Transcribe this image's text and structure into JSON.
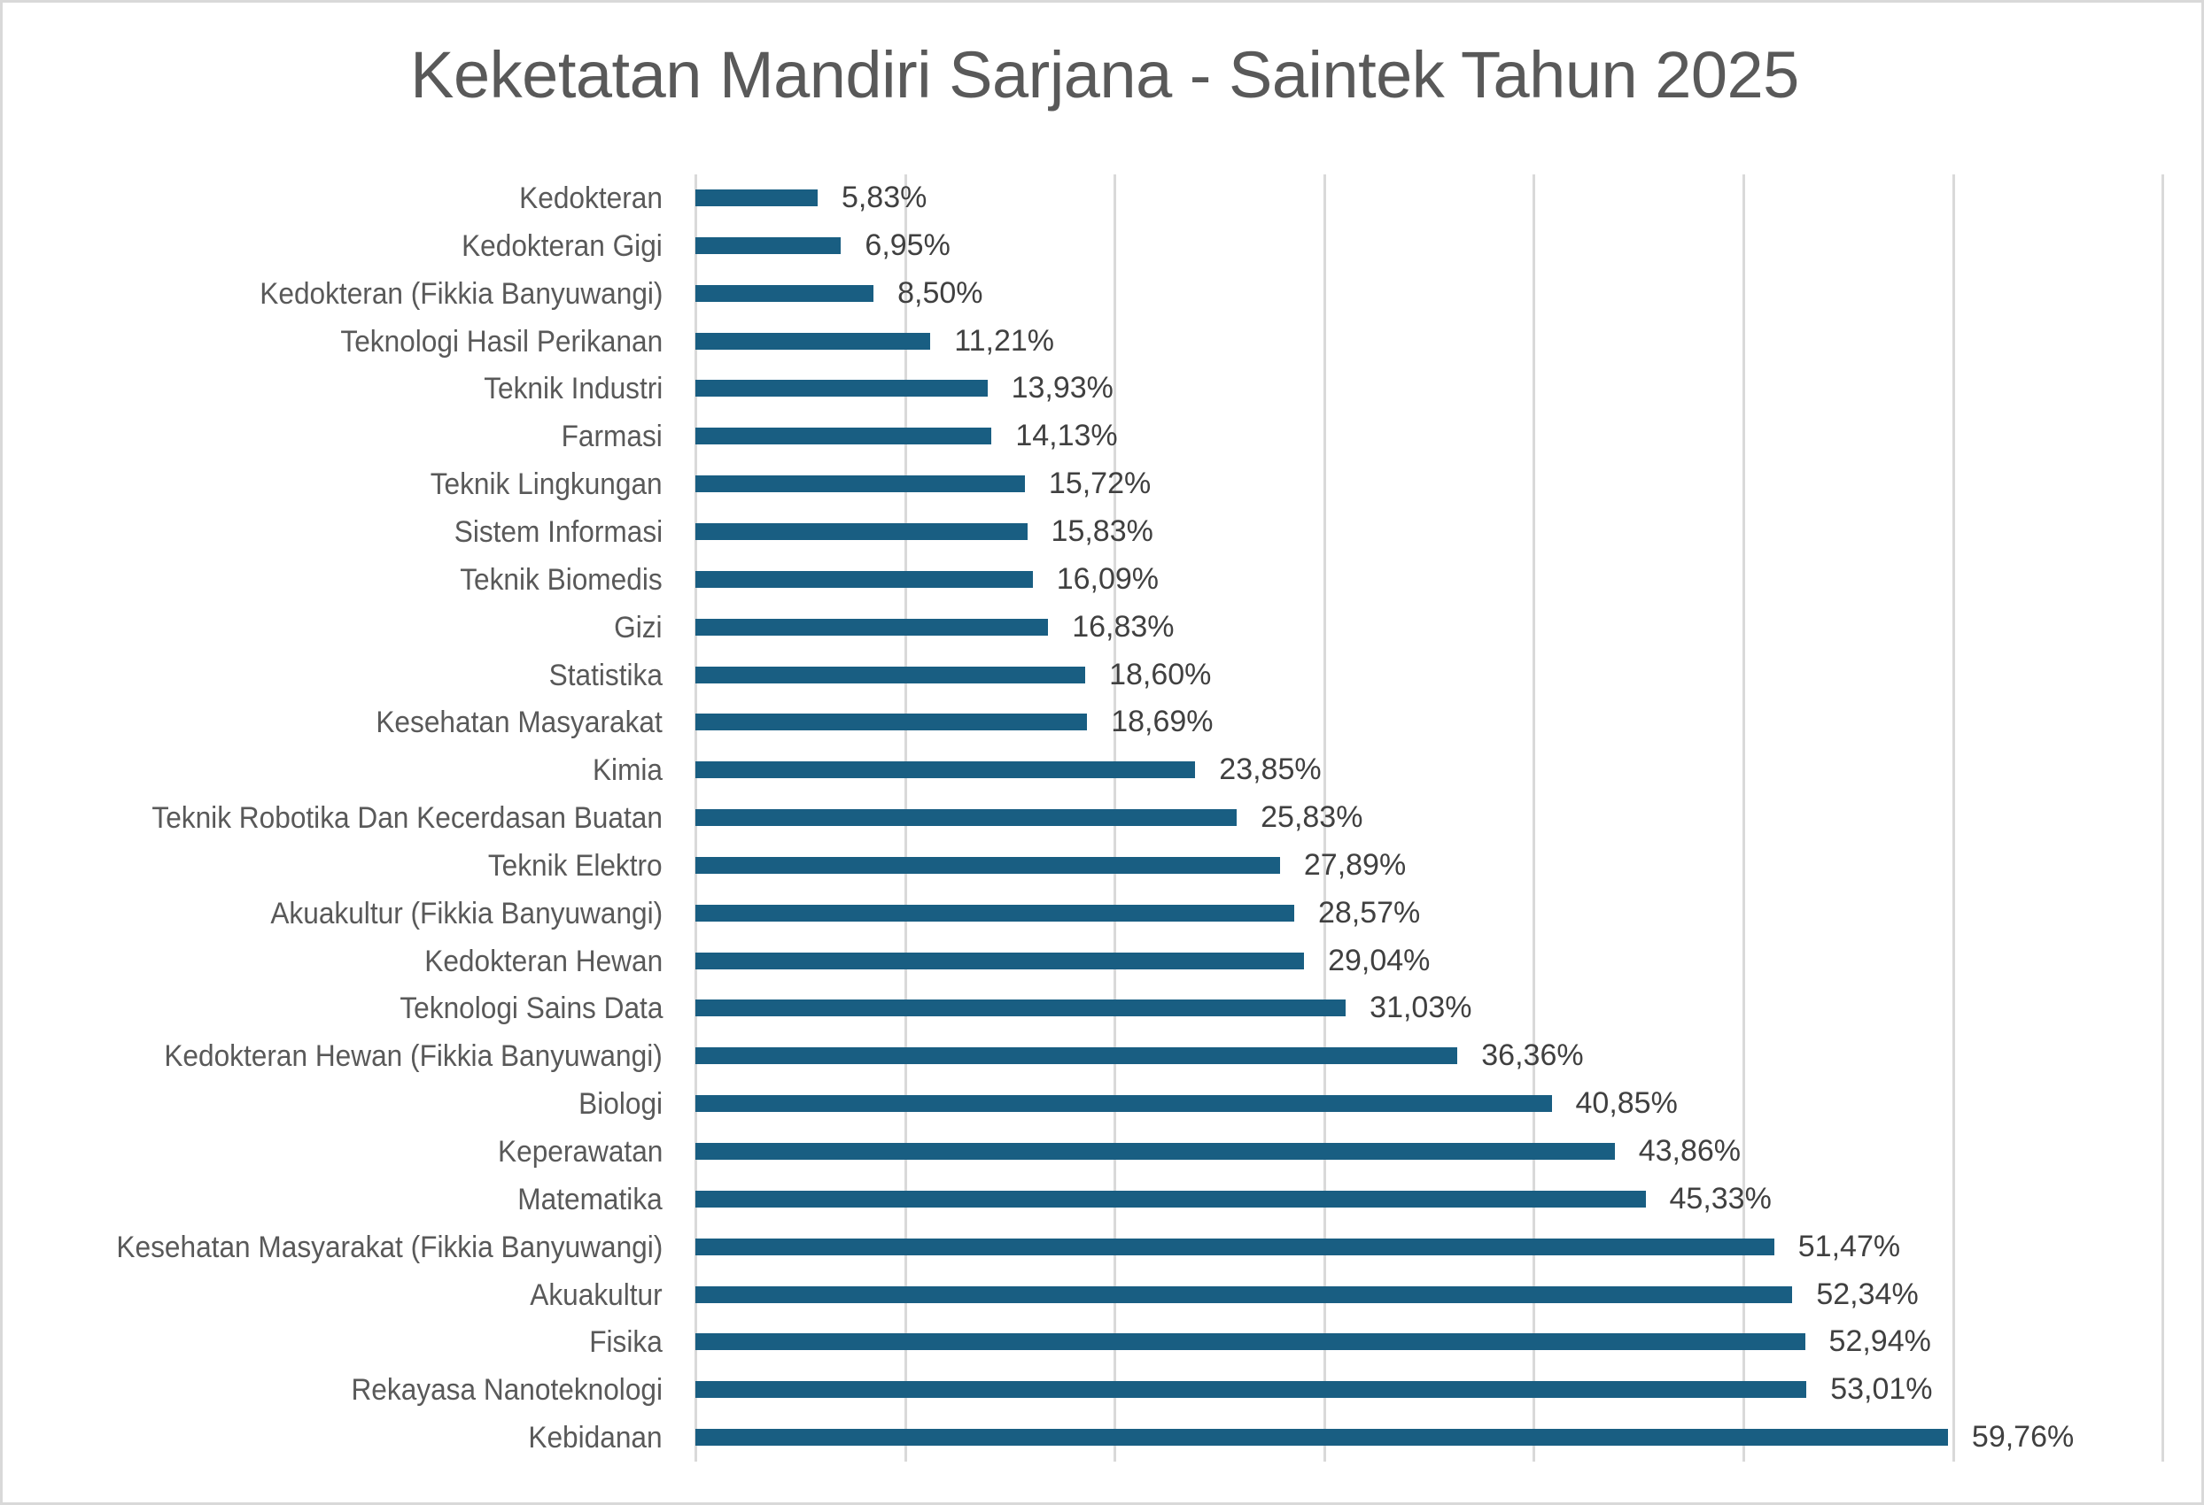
{
  "title": "Keketatan Mandiri Sarjana - Saintek Tahun 2025",
  "colors": {
    "bar": "#195e82",
    "gridline": "#d9d9d9",
    "title_text": "#595959",
    "category_text": "#595959",
    "value_text": "#404040",
    "frame_border": "#d9d9d9"
  },
  "chart_data": {
    "type": "bar",
    "orientation": "horizontal",
    "title": "Keketatan Mandiri Sarjana - Saintek Tahun 2025",
    "xlabel": "",
    "ylabel": "",
    "xlim": [
      0,
      70
    ],
    "x_grid_step": 10,
    "grid": true,
    "legend": null,
    "value_format": "percent, comma decimal separator",
    "categories": [
      "Kedokteran",
      "Kedokteran Gigi",
      "Kedokteran (Fikkia Banyuwangi)",
      "Teknologi Hasil Perikanan",
      "Teknik Industri",
      "Farmasi",
      "Teknik Lingkungan",
      "Sistem Informasi",
      "Teknik Biomedis",
      "Gizi",
      "Statistika",
      "Kesehatan Masyarakat",
      "Kimia",
      "Teknik Robotika Dan Kecerdasan Buatan",
      "Teknik Elektro",
      "Akuakultur (Fikkia Banyuwangi)",
      "Kedokteran Hewan",
      "Teknologi Sains Data",
      "Kedokteran Hewan (Fikkia Banyuwangi)",
      "Biologi",
      "Keperawatan",
      "Matematika",
      "Kesehatan Masyarakat (Fikkia Banyuwangi)",
      "Akuakultur",
      "Fisika",
      "Rekayasa Nanoteknologi",
      "Kebidanan"
    ],
    "values": [
      5.83,
      6.95,
      8.5,
      11.21,
      13.93,
      14.13,
      15.72,
      15.83,
      16.09,
      16.83,
      18.6,
      18.69,
      23.85,
      25.83,
      27.89,
      28.57,
      29.04,
      31.03,
      36.36,
      40.85,
      43.86,
      45.33,
      51.47,
      52.34,
      52.94,
      53.01,
      59.76
    ],
    "value_labels": [
      "5,83%",
      "6,95%",
      "8,50%",
      "11,21%",
      "13,93%",
      "14,13%",
      "15,72%",
      "15,83%",
      "16,09%",
      "16,83%",
      "18,60%",
      "18,69%",
      "23,85%",
      "25,83%",
      "27,89%",
      "28,57%",
      "29,04%",
      "31,03%",
      "36,36%",
      "40,85%",
      "43,86%",
      "45,33%",
      "51,47%",
      "52,34%",
      "52,94%",
      "53,01%",
      "59,76%"
    ]
  }
}
